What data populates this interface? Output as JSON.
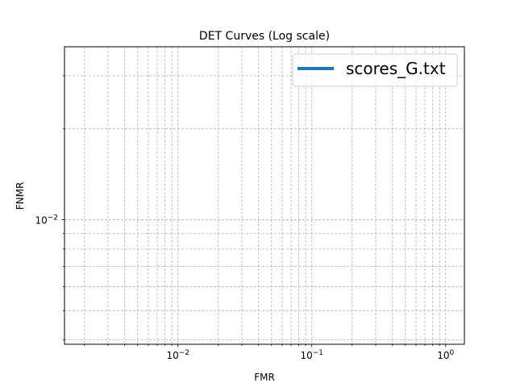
{
  "chart_data": {
    "type": "line",
    "title": "DET Curves (Log scale)",
    "xlabel": "FMR",
    "ylabel": "FNMR",
    "x_scale": "log",
    "y_scale": "log",
    "xlim": [
      0.00142,
      1.38
    ],
    "ylim": [
      0.00387,
      0.0374
    ],
    "x_tick_labels": [
      "10^-2",
      "10^-1",
      "10^0"
    ],
    "y_tick_labels": [
      "10^-2"
    ],
    "grid": "on",
    "legend_position": "top-right",
    "series": [
      {
        "name": "scores_G.txt",
        "color": "#1f77b4",
        "x": [],
        "y": []
      }
    ]
  }
}
